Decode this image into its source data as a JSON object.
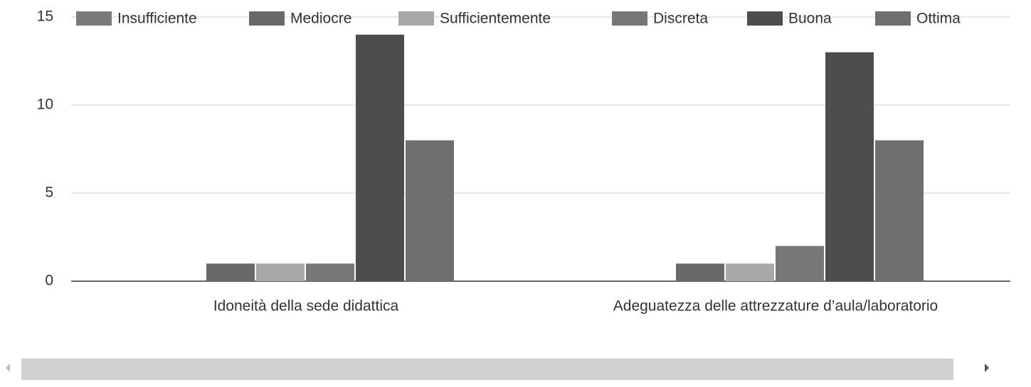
{
  "chart_data": {
    "type": "bar",
    "categories": [
      "Idoneità della sede didattica",
      "Adeguatezza delle attrezzature d’aula/laboratorio"
    ],
    "series": [
      {
        "name": "Insufficiente",
        "color": "#7a7a7a",
        "values": [
          0,
          0
        ]
      },
      {
        "name": "Mediocre",
        "color": "#696969",
        "values": [
          1,
          1
        ]
      },
      {
        "name": "Sufficientemente",
        "color": "#a8a8a8",
        "values": [
          1,
          1
        ]
      },
      {
        "name": "Discreta",
        "color": "#777777",
        "values": [
          1,
          2
        ]
      },
      {
        "name": "Buona",
        "color": "#4d4d4d",
        "values": [
          14,
          13
        ]
      },
      {
        "name": "Ottima",
        "color": "#6f6f6f",
        "values": [
          8,
          8
        ]
      }
    ],
    "ylim": [
      0,
      15
    ],
    "yticks": [
      0,
      5,
      10,
      15
    ],
    "grid": true,
    "legend": "top"
  }
}
